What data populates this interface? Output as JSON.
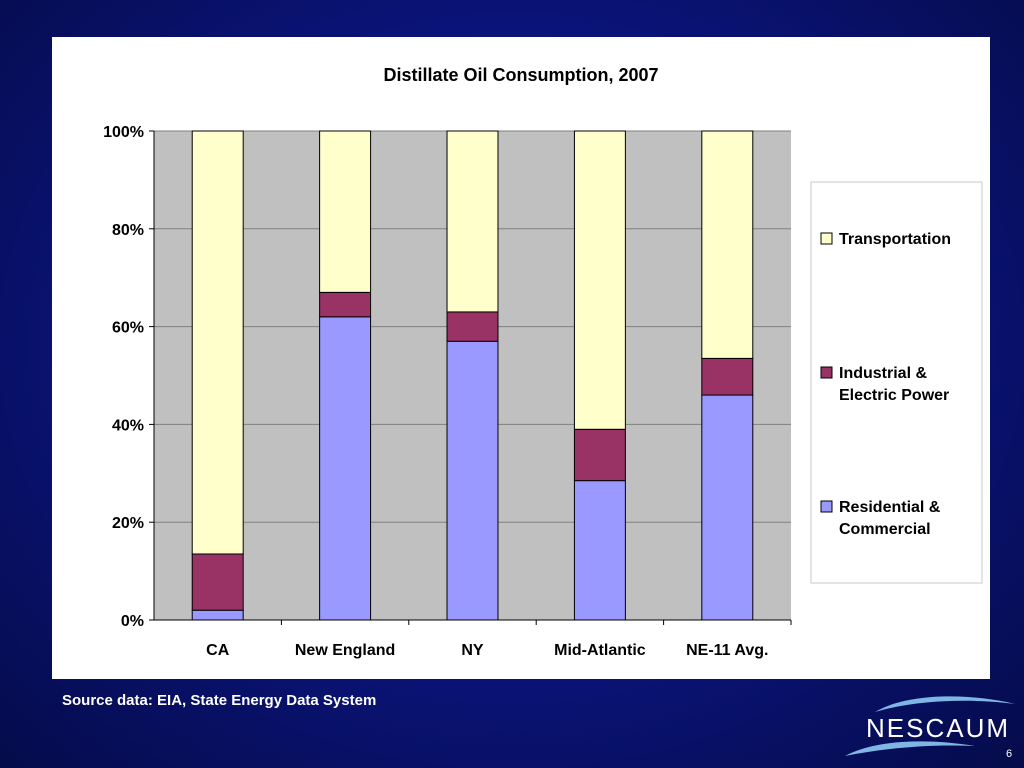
{
  "source_note": "Source data: EIA, State Energy Data System",
  "logo_text": "NESCAUM",
  "page_number": "6",
  "chart_data": {
    "type": "bar",
    "stacked": "percent",
    "title": "Distillate Oil Consumption, 2007",
    "categories": [
      "CA",
      "New England",
      "NY",
      "Mid-Atlantic",
      "NE-11 Avg."
    ],
    "series": [
      {
        "name": "Residential & Commercial",
        "color": "#9999ff",
        "values": [
          2,
          62,
          57,
          28.5,
          46
        ]
      },
      {
        "name": "Industrial & Electric Power",
        "color": "#993366",
        "values": [
          11.5,
          5,
          6,
          10.5,
          7.5
        ]
      },
      {
        "name": "Transportation",
        "color": "#ffffcc",
        "values": [
          86.5,
          33,
          37,
          61,
          46.5
        ]
      }
    ],
    "y_ticks": [
      "0%",
      "20%",
      "40%",
      "60%",
      "80%",
      "100%"
    ],
    "ylim": [
      0,
      100
    ],
    "grid": true,
    "plot_background": "#c0c0c0",
    "legend": {
      "position": "right",
      "entries": [
        {
          "lines": [
            "Transportation"
          ],
          "color": "#ffffcc"
        },
        {
          "lines": [
            "Industrial &",
            "Electric Power"
          ],
          "color": "#993366"
        },
        {
          "lines": [
            "Residential &",
            "Commercial"
          ],
          "color": "#9999ff"
        }
      ]
    }
  }
}
